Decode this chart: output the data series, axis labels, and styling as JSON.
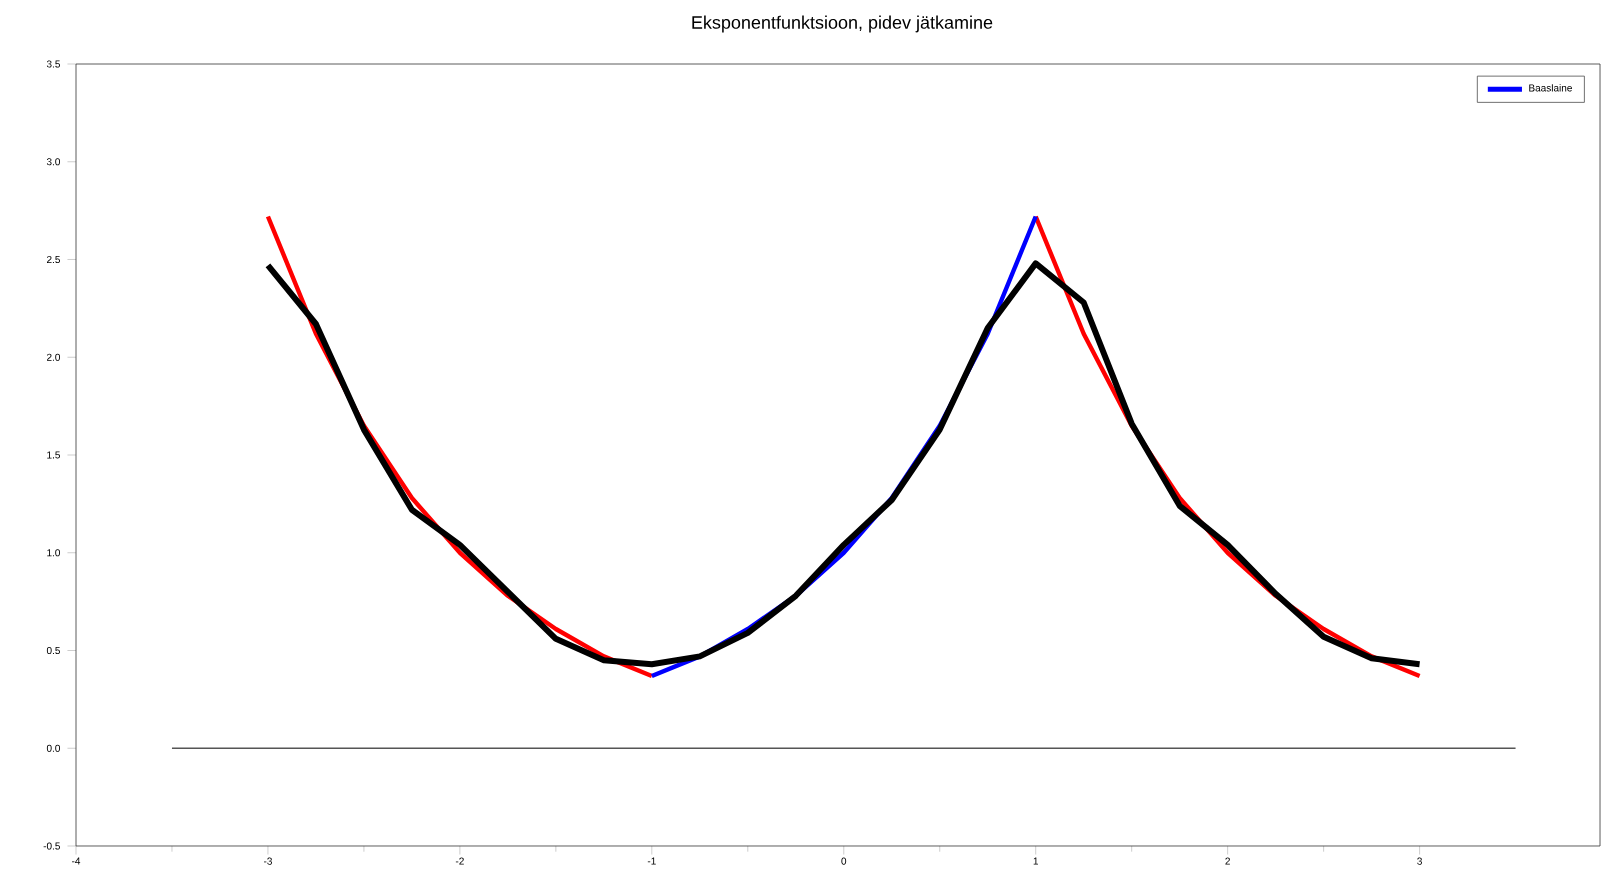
{
  "chart_data": {
    "type": "line",
    "title": "Eksponentfunktsioon, pidev jätkamine",
    "xlim": [
      -4,
      3.94
    ],
    "ylim": [
      -0.5,
      3.5
    ],
    "xticks": [
      -4,
      -3,
      -2,
      -1,
      0,
      1,
      2,
      3
    ],
    "yticks": [
      {
        "value": -0.5,
        "label": "-0.5"
      },
      {
        "value": 0,
        "label": "0.0"
      },
      {
        "value": 0.5,
        "label": "0.5"
      },
      {
        "value": 1,
        "label": "1.0"
      },
      {
        "value": 1.5,
        "label": "1.5"
      },
      {
        "value": 2,
        "label": "2.0"
      },
      {
        "value": 2.5,
        "label": "2.5"
      },
      {
        "value": 3,
        "label": "3.0"
      },
      {
        "value": 3.5,
        "label": "3.5"
      }
    ],
    "legend": "top right",
    "marker": "none",
    "line_style": "solid",
    "series": [
      {
        "color": "#555555",
        "x": [
          -3.5,
          3.5
        ],
        "values": [
          0,
          0
        ]
      },
      {
        "color": "#ff0000",
        "x": [
          -3,
          -2.75,
          -2.5,
          -2.25,
          -2,
          -1.75,
          -1.5,
          -1.25,
          -1,
          0,
          1,
          1.25,
          1.5,
          1.75,
          2,
          2.25,
          2.5,
          2.75,
          3
        ],
        "values": [
          2.72,
          2.12,
          1.65,
          1.28,
          1.0,
          0.78,
          0.61,
          0.47,
          0.37,
          null,
          2.72,
          2.12,
          1.65,
          1.28,
          1.0,
          0.78,
          0.61,
          0.47,
          0.37
        ]
      },
      {
        "name": "Baaslaine",
        "color": "#0000ff",
        "x": [
          -1,
          -0.75,
          -0.5,
          -0.25,
          0,
          0.25,
          0.5,
          0.75,
          1
        ],
        "values": [
          0.37,
          0.47,
          0.61,
          0.78,
          1.0,
          1.28,
          1.65,
          2.12,
          2.72
        ]
      },
      {
        "color": "#000000",
        "x": [
          -3,
          -2.75,
          -2.5,
          -2.25,
          -2,
          -1.75,
          -1.5,
          -1.25,
          -1,
          -0.75,
          -0.5,
          -0.25,
          0,
          0.25,
          0.5,
          0.75,
          1,
          1.25,
          1.5,
          1.75,
          2,
          2.25,
          2.5,
          2.75,
          3
        ],
        "values": [
          2.47,
          2.17,
          1.63,
          1.22,
          1.04,
          0.8,
          0.56,
          0.45,
          0.43,
          0.47,
          0.59,
          0.78,
          1.04,
          1.27,
          1.63,
          2.15,
          2.48,
          2.28,
          1.66,
          1.24,
          1.04,
          0.79,
          0.57,
          0.46,
          0.43
        ]
      }
    ]
  }
}
